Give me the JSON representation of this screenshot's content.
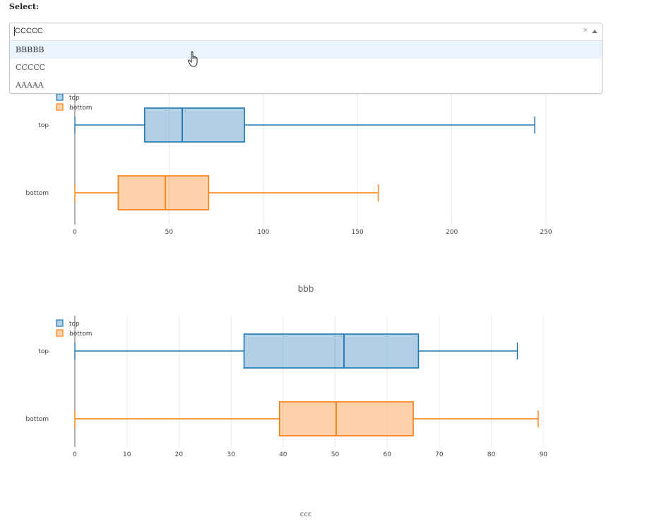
{
  "select_label": "Select:",
  "dropdown": {
    "value": "CCCCC",
    "clear_symbol": "×",
    "options": [
      "BBBBB",
      "CCCCC",
      "AAAAA"
    ],
    "hovered_index": 0
  },
  "colors": {
    "top": "#1f77b4",
    "bottom": "#ff7f0e",
    "grid": "#e8e8e8"
  },
  "chart_data": [
    {
      "type": "box",
      "orientation": "horizontal",
      "title": "bbb",
      "legend": [
        "top",
        "bottom"
      ],
      "legend_position": "top-left",
      "grid": true,
      "xlim": [
        0,
        260
      ],
      "xticks": [
        0,
        50,
        100,
        150,
        200,
        250
      ],
      "series": [
        {
          "name": "top",
          "min": 0,
          "q1": 37,
          "median": 57,
          "q3": 90,
          "max": 244
        },
        {
          "name": "bottom",
          "min": 0,
          "q1": 23,
          "median": 48,
          "q3": 71,
          "max": 161
        }
      ]
    },
    {
      "type": "box",
      "orientation": "horizontal",
      "title": "ccc",
      "legend": [
        "top",
        "bottom"
      ],
      "legend_position": "top-left",
      "grid": true,
      "xlim": [
        0,
        92
      ],
      "xticks": [
        0,
        10,
        20,
        30,
        40,
        50,
        60,
        70,
        80,
        90
      ],
      "series": [
        {
          "name": "top",
          "min": 0,
          "q1": 32.5,
          "median": 51.7,
          "q3": 66,
          "max": 85
        },
        {
          "name": "bottom",
          "min": 0,
          "q1": 39.3,
          "median": 50.2,
          "q3": 65,
          "max": 89
        }
      ]
    }
  ]
}
